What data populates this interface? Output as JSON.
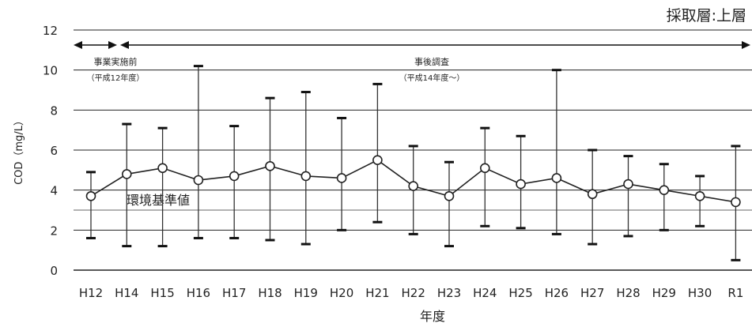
{
  "chart_data": {
    "type": "line",
    "title": "採取層:上層",
    "xlabel": "年度",
    "ylabel": "COD（mg/L）",
    "ylim": [
      0,
      12
    ],
    "yticks": [
      0,
      2,
      4,
      6,
      8,
      10,
      12
    ],
    "grid": true,
    "categories": [
      "H12",
      "H14",
      "H15",
      "H16",
      "H17",
      "H18",
      "H19",
      "H20",
      "H21",
      "H22",
      "H23",
      "H24",
      "H25",
      "H26",
      "H27",
      "H28",
      "H29",
      "H30",
      "R1"
    ],
    "mean": [
      3.7,
      4.8,
      5.1,
      4.5,
      4.7,
      5.2,
      4.7,
      4.6,
      5.5,
      4.2,
      3.7,
      5.1,
      4.3,
      4.6,
      3.8,
      4.3,
      4.0,
      3.7,
      3.4
    ],
    "max": [
      4.9,
      7.3,
      7.1,
      10.2,
      7.2,
      8.6,
      8.9,
      7.6,
      9.3,
      6.2,
      5.4,
      7.1,
      6.7,
      10.0,
      6.0,
      5.7,
      5.3,
      4.7,
      6.2
    ],
    "min": [
      1.6,
      1.2,
      1.2,
      1.6,
      1.6,
      1.5,
      1.3,
      2.0,
      2.4,
      1.8,
      1.2,
      2.2,
      2.1,
      1.8,
      1.3,
      1.7,
      2.0,
      2.2,
      0.5
    ],
    "reference_line": {
      "label": "環境基準値",
      "value": 3
    },
    "periods": [
      {
        "label": "事業実施前",
        "sublabel": "（平成12年度）",
        "from_index": 0,
        "to_index": 0
      },
      {
        "label": "事後調査",
        "sublabel": "（平成14年度～）",
        "from_index": 1,
        "to_index": 18
      }
    ]
  }
}
